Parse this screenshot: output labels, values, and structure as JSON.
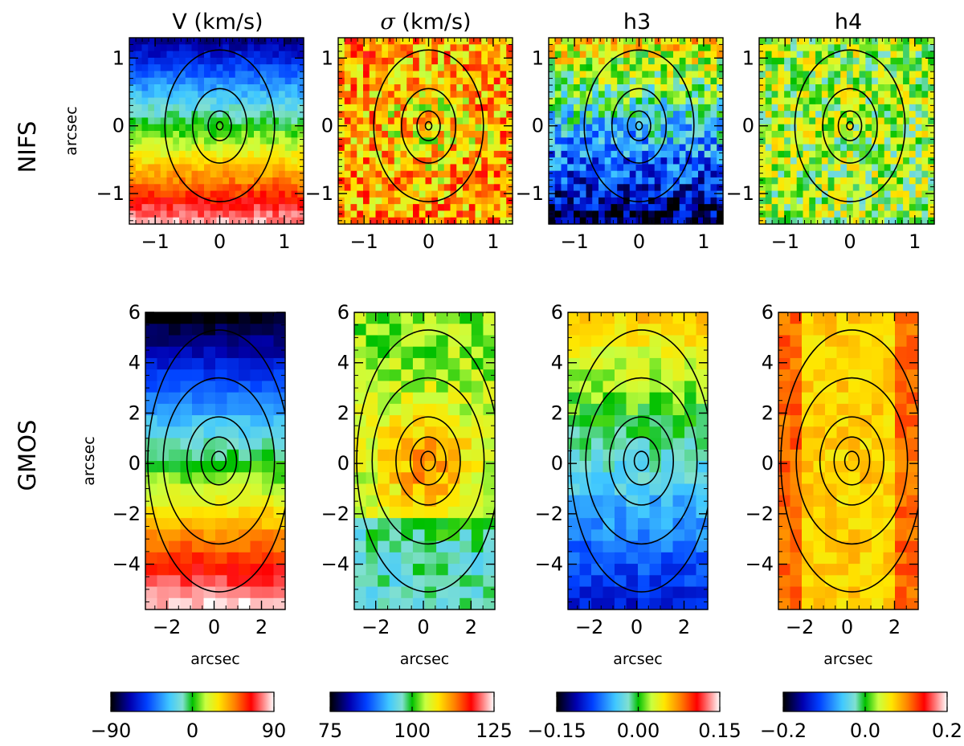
{
  "chart_data": {
    "type": "heatmap",
    "rows": [
      "NIFS",
      "GMOS"
    ],
    "columns": [
      {
        "key": "V",
        "title": "V (km/s)",
        "title_symbol": "",
        "title_rest": "V (km/s)",
        "vmin": -90,
        "vmax": 90,
        "ticks": [
          "−90",
          "0",
          "90"
        ],
        "tick_values": [
          -90,
          0,
          90
        ]
      },
      {
        "key": "sigma",
        "title": "σ (km/s)",
        "title_symbol": "σ",
        "title_rest": " (km/s)",
        "vmin": 75,
        "vmax": 125,
        "ticks": [
          "75",
          "100",
          "125"
        ],
        "tick_values": [
          75,
          100,
          125
        ]
      },
      {
        "key": "h3",
        "title": "h3",
        "title_symbol": "",
        "title_rest": "h3",
        "vmin": -0.15,
        "vmax": 0.15,
        "ticks": [
          "−0.15",
          "0.00",
          "0.15"
        ],
        "tick_values": [
          -0.15,
          0,
          0.15
        ]
      },
      {
        "key": "h4",
        "title": "h4",
        "title_symbol": "",
        "title_rest": "h4",
        "vmin": -0.2,
        "vmax": 0.2,
        "ticks": [
          "−0.2",
          "0.0",
          "0.2"
        ],
        "tick_values": [
          -0.2,
          0,
          0.2
        ]
      }
    ],
    "panels": {
      "NIFS": {
        "xlim": [
          -1.4,
          1.3
        ],
        "ylim": [
          -1.45,
          1.3
        ],
        "xticks": [
          -1,
          0,
          1
        ],
        "xtick_labels": [
          "−1",
          "0",
          "1"
        ],
        "yticks": [
          -1,
          0,
          1
        ],
        "ytick_labels": [
          "−1",
          "0",
          "1"
        ],
        "ylabel": "arcsec",
        "xlabel": "",
        "contour_semi_axes_arcsec": [
          [
            0.05,
            0.06
          ],
          [
            0.18,
            0.22
          ],
          [
            0.42,
            0.55
          ],
          [
            0.85,
            1.12
          ]
        ]
      },
      "GMOS": {
        "xlim": [
          -2.9,
          3.0
        ],
        "ylim": [
          -5.8,
          6.0
        ],
        "xticks": [
          -2,
          0,
          2
        ],
        "xtick_labels": [
          "−2",
          "0",
          "2"
        ],
        "yticks": [
          -4,
          -2,
          0,
          2,
          4,
          6
        ],
        "ytick_labels": [
          "−4",
          "−2",
          "0",
          "2",
          "4",
          "6"
        ],
        "ylabel": "arcsec",
        "xlabel": "arcsec",
        "contour_semi_axes_arcsec": [
          [
            0.3,
            0.38
          ],
          [
            0.75,
            0.95
          ],
          [
            1.35,
            1.75
          ],
          [
            2.35,
            3.3
          ],
          [
            3.0,
            5.2
          ]
        ]
      }
    },
    "colormap": "jet-like: black-blue-cyan-green-yellow-red-pink-white"
  }
}
